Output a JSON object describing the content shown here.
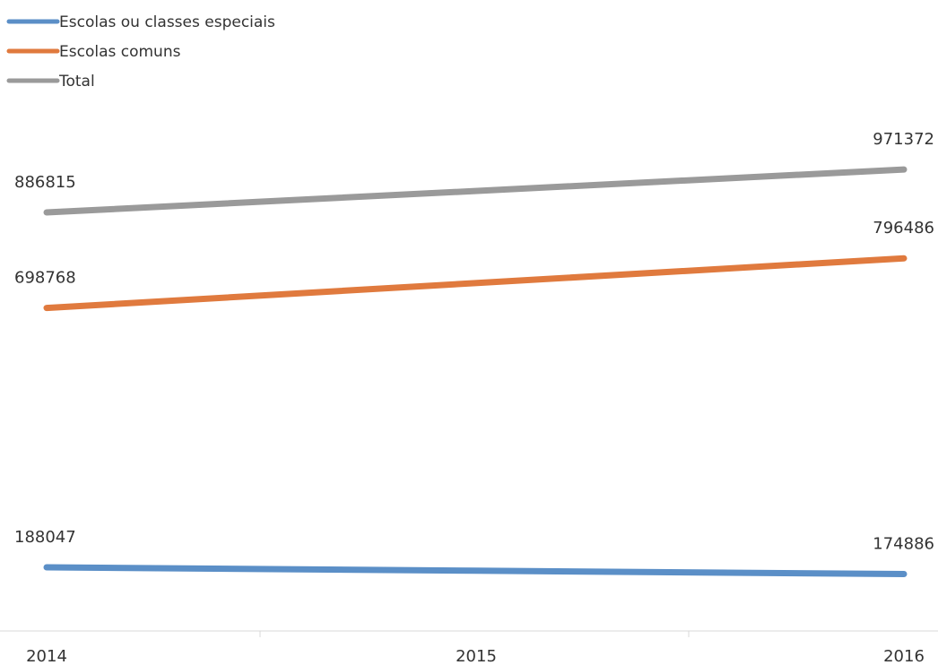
{
  "chart_data": {
    "type": "line",
    "categories": [
      "2014",
      "2015",
      "2016"
    ],
    "series": [
      {
        "name": "Escolas ou classes especiais",
        "color": "#5b8fc7",
        "values": [
          188047,
          null,
          174886
        ]
      },
      {
        "name": "Escolas comuns",
        "color": "#e07a3e",
        "values": [
          698768,
          null,
          796486
        ]
      },
      {
        "name": "Total",
        "color": "#9a9a9a",
        "values": [
          886815,
          null,
          971372
        ]
      }
    ],
    "data_labels": [
      {
        "series": 0,
        "points": [
          "188047",
          "174886"
        ]
      },
      {
        "series": 1,
        "points": [
          "698768",
          "796486"
        ]
      },
      {
        "series": 2,
        "points": [
          "886815",
          "971372"
        ]
      }
    ],
    "legend_position": "top-left",
    "grid": false
  }
}
